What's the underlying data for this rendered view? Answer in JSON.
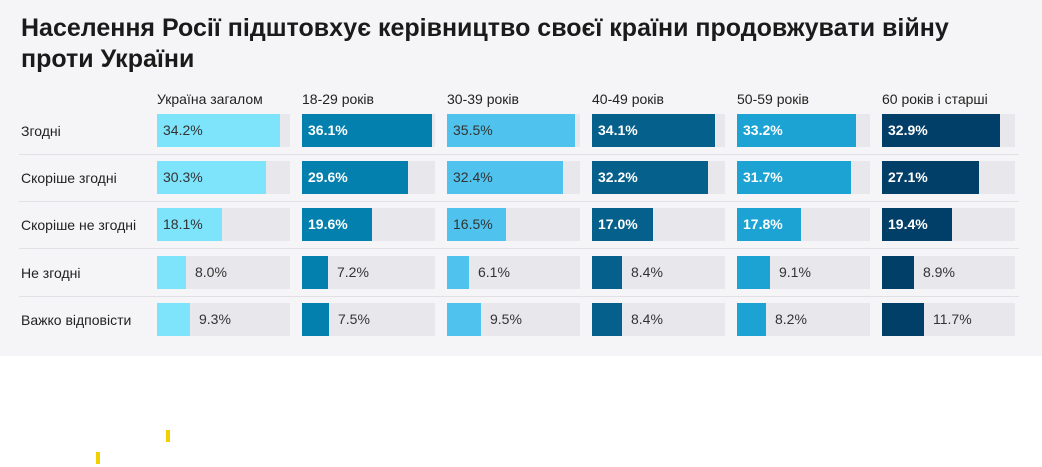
{
  "chart_data": {
    "type": "table",
    "title": "Населення Росії підштовхує керівництво своєї країни продовжувати війну проти України",
    "categories": [
      "Згодні",
      "Скоріше згодні",
      "Скоріше не згодні",
      "Не згодні",
      "Важко відповісти"
    ],
    "series": [
      {
        "name": "Україна загалом",
        "color": "#7de4fb",
        "text_color": "dark",
        "values": [
          34.2,
          30.3,
          18.1,
          8.0,
          9.3
        ],
        "labels": [
          "34.2%",
          "30.3%",
          "18.1%",
          "8.0%",
          "9.3%"
        ]
      },
      {
        "name": "18-29 років",
        "color": "#0380ae",
        "text_color": "light",
        "values": [
          36.1,
          29.6,
          19.6,
          7.2,
          7.5
        ],
        "labels": [
          "36.1%",
          "29.6%",
          "19.6%",
          "7.2%",
          "7.5%"
        ]
      },
      {
        "name": "30-39 років",
        "color": "#4fc3ee",
        "text_color": "dark",
        "values": [
          35.5,
          32.4,
          16.5,
          6.1,
          9.5
        ],
        "labels": [
          "35.5%",
          "32.4%",
          "16.5%",
          "6.1%",
          "9.5%"
        ]
      },
      {
        "name": "40-49 років",
        "color": "#05608c",
        "text_color": "light",
        "values": [
          34.1,
          32.2,
          17.0,
          8.4,
          8.4
        ],
        "labels": [
          "34.1%",
          "32.2%",
          "17.0%",
          "8.4%",
          "8.4%"
        ]
      },
      {
        "name": "50-59 років",
        "color": "#1ca3d3",
        "text_color": "light",
        "values": [
          33.2,
          31.7,
          17.8,
          9.1,
          8.2
        ],
        "labels": [
          "33.2%",
          "31.7%",
          "17.8%",
          "9.1%",
          "8.2%"
        ]
      },
      {
        "name": "60 років і старші",
        "color": "#023f68",
        "text_color": "light",
        "values": [
          32.9,
          27.1,
          19.4,
          8.9,
          11.7
        ],
        "labels": [
          "32.9%",
          "27.1%",
          "19.4%",
          "8.9%",
          "11.7%"
        ]
      }
    ],
    "xlim": [
      0,
      37
    ],
    "grid": false,
    "legend": "none"
  },
  "colors": {
    "track": "#e8e8ec",
    "panel": "#f5f5f7",
    "dark_text": "#333333",
    "light_text": "#ffffff",
    "accent_mark": "#f0d000"
  }
}
